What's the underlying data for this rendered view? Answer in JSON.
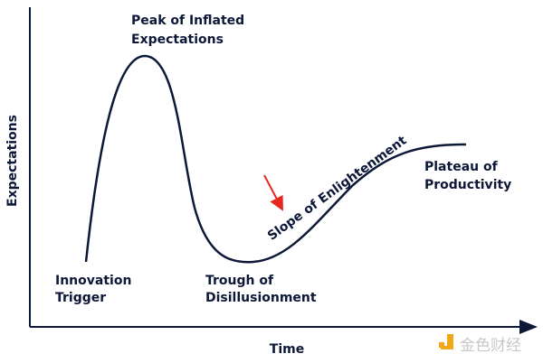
{
  "diagram": {
    "x_axis_label": "Time",
    "y_axis_label": "Expectations",
    "phases": [
      {
        "lines": [
          "Innovation",
          "Trigger"
        ]
      },
      {
        "lines": [
          "Peak of Inflated",
          "Expectations"
        ]
      },
      {
        "lines": [
          "Trough of",
          "Disillusionment"
        ]
      },
      {
        "lines": [
          "Slope of Enlightenment"
        ]
      },
      {
        "lines": [
          "Plateau of",
          "Productivity"
        ]
      }
    ],
    "annotation": "red-arrow pointing to Slope of Enlightenment",
    "colors": {
      "curve": "#0d1838",
      "axis": "#0d1838",
      "arrow": "#e8281e",
      "watermark_logo": "#f0a818"
    }
  },
  "watermark": {
    "text": "金色财经"
  }
}
